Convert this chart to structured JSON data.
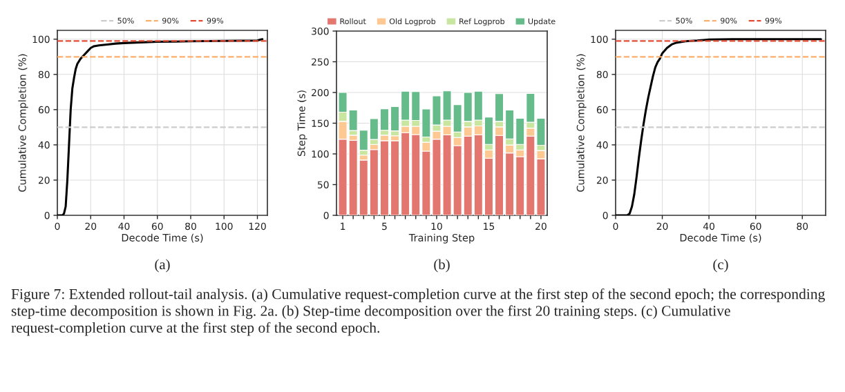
{
  "chart_data": [
    {
      "type": "line",
      "xlabel": "Decode Time (s)",
      "ylabel": "Cumulative Completion (%)",
      "x": [
        0,
        3,
        4,
        5,
        6,
        7,
        8,
        9,
        10,
        11,
        12,
        14,
        16,
        18,
        20,
        22,
        25,
        30,
        35,
        40,
        50,
        60,
        80,
        100,
        120,
        122,
        123
      ],
      "series": [
        {
          "color": "#000000",
          "values": [
            0,
            0,
            1,
            5,
            20,
            40,
            60,
            72,
            78,
            83,
            86,
            89,
            91,
            93,
            95,
            96,
            96.5,
            97,
            97.5,
            97.8,
            98.2,
            98.5,
            98.8,
            99,
            99.2,
            99.8,
            100
          ]
        }
      ],
      "xlim": [
        0,
        126
      ],
      "xticks": [
        0,
        20,
        40,
        60,
        80,
        100,
        120
      ],
      "ylim": [
        0,
        105
      ],
      "yticks": [
        0,
        20,
        40,
        60,
        80,
        100
      ],
      "grid": true,
      "legend": "top",
      "ref_lines": [
        {
          "axis": "y",
          "value": 50,
          "label": "50%",
          "color": "#cccccc",
          "line_style": "dashed"
        },
        {
          "axis": "y",
          "value": 90,
          "label": "90%",
          "color": "#fdae6b",
          "line_style": "dashed"
        },
        {
          "axis": "y",
          "value": 99,
          "label": "99%",
          "color": "#e34a33",
          "line_style": "dashed"
        }
      ],
      "annotations": [
        "(a)",
        "Figure 7: Extended rollout-tail analysis. (a) Cumulative request-completion curve at the first step of the second epoch; the corresponding step-time decomposition is shown in Fig. 2a. (b) Step-time decomposition over the first 20 training steps. (c) Cumulative request-completion curve at the first step of the second epoch."
      ]
    },
    {
      "type": "bar",
      "stacked": true,
      "xlabel": "Training Step",
      "ylabel": "Step Time (s)",
      "categories": [
        "1",
        null,
        null,
        null,
        "5",
        null,
        null,
        null,
        null,
        "10",
        null,
        null,
        null,
        null,
        "15",
        null,
        null,
        null,
        null,
        "20"
      ],
      "series": [
        {
          "name": "Rollout",
          "color": "#e3776f",
          "values": [
            124,
            122,
            90,
            107,
            121.5,
            121.5,
            134.5,
            131.5,
            104.5,
            124,
            131,
            113.5,
            129,
            131,
            93,
            130,
            101.5,
            95.5,
            129,
            92
          ]
        },
        {
          "name": "Old Logprob",
          "color": "#fdc891",
          "values": [
            29,
            8.5,
            8,
            8.5,
            9,
            8,
            10.5,
            13.5,
            14.5,
            13,
            14,
            13,
            15,
            14.5,
            13.5,
            14,
            13,
            11,
            13,
            13.5
          ]
        },
        {
          "name": "Ref Logprob",
          "color": "#c8e6a0",
          "values": [
            15,
            7.5,
            8,
            8,
            8,
            8,
            10,
            9.5,
            8.5,
            10,
            10,
            9,
            9,
            9.5,
            9,
            9,
            10,
            9,
            9.5,
            8.5
          ]
        },
        {
          "name": "Update",
          "color": "#66bb8a",
          "values": [
            32,
            33.5,
            32.5,
            34,
            35,
            39.5,
            47,
            47,
            45.5,
            47.5,
            47.5,
            44.5,
            47,
            47,
            44.5,
            45,
            47,
            42.5,
            47,
            44
          ]
        }
      ],
      "ylim": [
        0,
        300
      ],
      "yticks": [
        0,
        50,
        100,
        150,
        200,
        250,
        300
      ],
      "grid": "y",
      "legend": "top",
      "annotations": [
        "(b)"
      ]
    },
    {
      "type": "line",
      "xlabel": "Decode Time (s)",
      "ylabel": "Cumulative Completion (%)",
      "x": [
        0,
        5,
        6,
        7,
        8,
        9,
        10,
        11,
        12,
        13,
        14,
        15,
        16,
        17,
        18,
        19,
        20,
        22,
        24,
        26,
        30,
        35,
        40,
        50,
        88
      ],
      "series": [
        {
          "color": "#000000",
          "values": [
            0,
            0,
            1,
            5,
            12,
            22,
            33,
            43,
            52,
            60,
            67,
            73,
            79,
            84,
            87,
            89,
            92,
            95,
            97,
            98,
            98.8,
            99.2,
            99.8,
            100,
            100
          ]
        }
      ],
      "xlim": [
        0,
        90
      ],
      "xticks": [
        0,
        20,
        40,
        60,
        80
      ],
      "ylim": [
        0,
        105
      ],
      "yticks": [
        0,
        20,
        40,
        60,
        80,
        100
      ],
      "grid": true,
      "legend": "top",
      "ref_lines": [
        {
          "axis": "y",
          "value": 50,
          "label": "50%",
          "color": "#cccccc",
          "line_style": "dashed"
        },
        {
          "axis": "y",
          "value": 90,
          "label": "90%",
          "color": "#fdae6b",
          "line_style": "dashed"
        },
        {
          "axis": "y",
          "value": 99,
          "label": "99%",
          "color": "#e34a33",
          "line_style": "dashed"
        }
      ],
      "annotations": [
        "(c)"
      ]
    }
  ]
}
